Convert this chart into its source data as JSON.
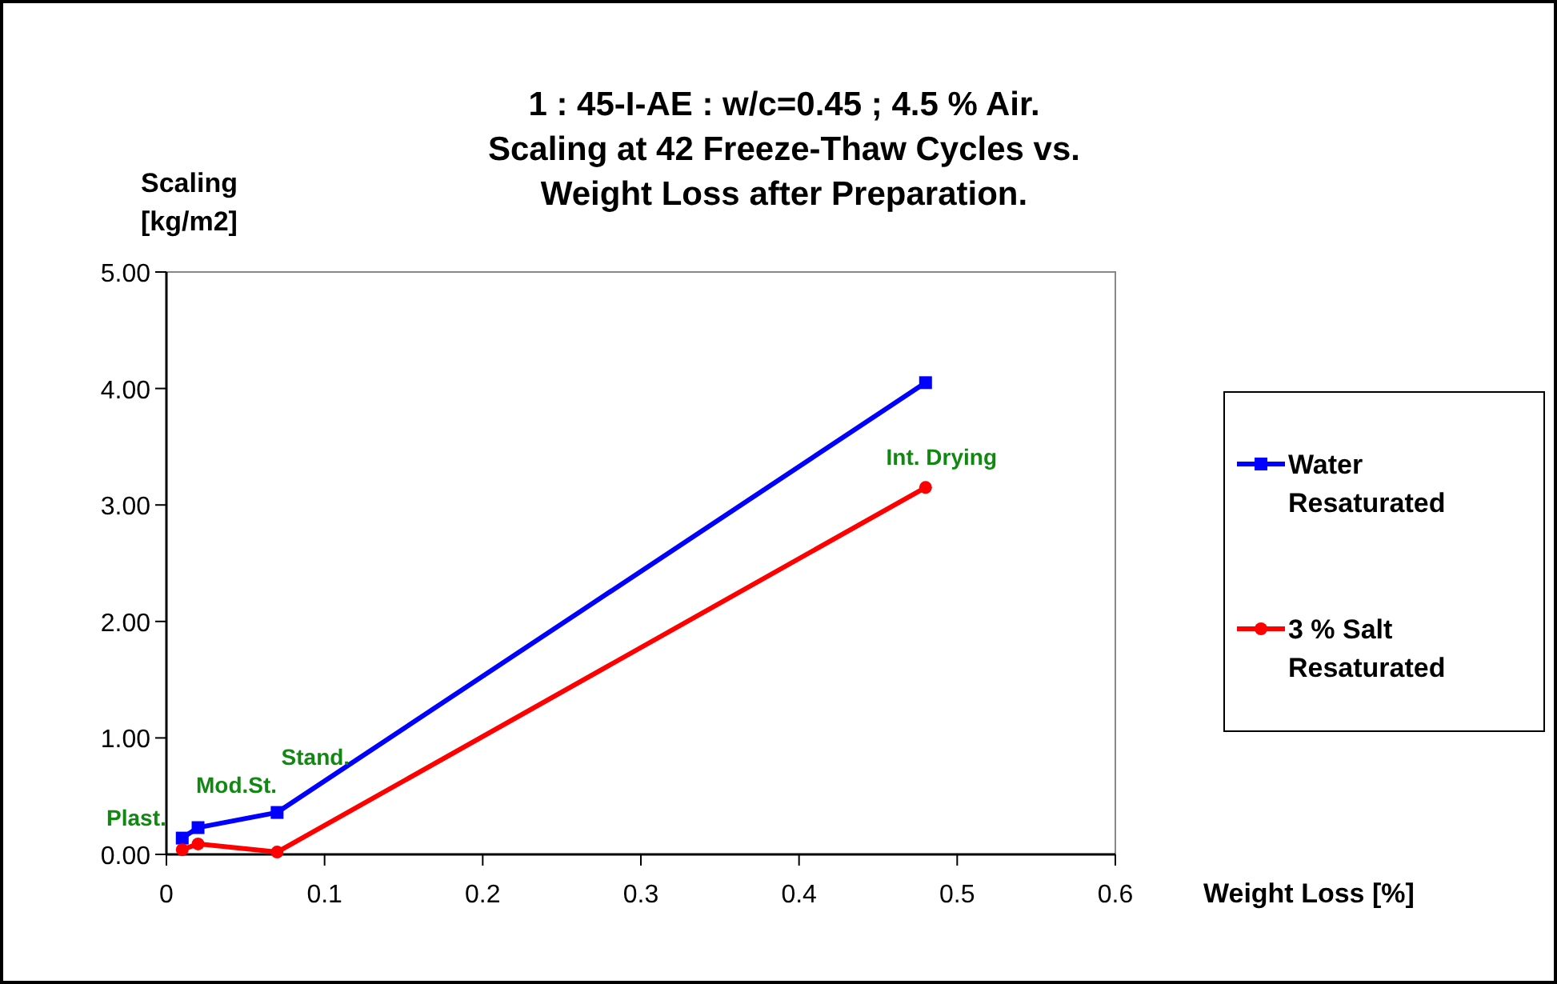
{
  "chart_data": {
    "type": "line",
    "title": "1 : 45-I-AE : w/c=0.45 ; 4.5 % Air.\nScaling at 42 Freeze-Thaw Cycles vs.\nWeight Loss after Preparation.",
    "xlabel": "Weight Loss [%]",
    "ylabel": "Scaling\n[kg/m2]",
    "x": [
      0.01,
      0.02,
      0.07,
      0.48
    ],
    "series": [
      {
        "name": "Water Resaturated",
        "color": "#0000ff",
        "values": [
          0.14,
          0.23,
          0.36,
          4.05
        ],
        "marker": "square"
      },
      {
        "name": "3 % Salt Resaturated",
        "color": "#ff0000",
        "values": [
          0.04,
          0.09,
          0.02,
          3.15
        ],
        "marker": "circle"
      }
    ],
    "xlim": [
      0,
      0.6
    ],
    "xticks": [
      0,
      0.1,
      0.2,
      0.3,
      0.4,
      0.5,
      0.6
    ],
    "ylim": [
      0,
      5
    ],
    "yticks": [
      {
        "value": 0,
        "label": "0.00"
      },
      {
        "value": 1,
        "label": "1.00"
      },
      {
        "value": 2,
        "label": "2.00"
      },
      {
        "value": 3,
        "label": "3.00"
      },
      {
        "value": 4,
        "label": "4.00"
      },
      {
        "value": 5,
        "label": "5.00"
      }
    ],
    "annotations": [
      {
        "text": "Plast.",
        "x": 0.01,
        "y": 0.14
      },
      {
        "text": "Mod.St.",
        "x": 0.02,
        "y": 0.23
      },
      {
        "text": "Stand.",
        "x": 0.07,
        "y": 0.36
      },
      {
        "text": "Int. Drying",
        "x": 0.48,
        "y": 3.15
      }
    ],
    "grid": false,
    "legend": "right"
  }
}
